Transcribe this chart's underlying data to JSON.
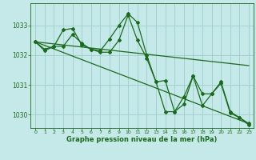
{
  "background_color": "#c5e8e8",
  "grid_color": "#9ecece",
  "line_color": "#1a6b1a",
  "xlabel": "Graphe pression niveau de la mer (hPa)",
  "xlim": [
    -0.5,
    23.5
  ],
  "ylim": [
    1029.55,
    1033.75
  ],
  "yticks": [
    1030,
    1031,
    1032,
    1033
  ],
  "xticks": [
    0,
    1,
    2,
    3,
    4,
    5,
    6,
    7,
    8,
    9,
    10,
    11,
    12,
    13,
    14,
    15,
    16,
    17,
    18,
    19,
    20,
    21,
    22,
    23
  ],
  "series": [
    {
      "x": [
        0,
        1,
        2,
        3,
        4,
        5,
        6,
        7,
        8,
        9,
        10,
        11,
        12,
        13,
        14,
        15,
        16,
        17,
        18,
        19,
        20,
        21,
        22,
        23
      ],
      "y": [
        1032.45,
        1032.15,
        1032.3,
        1032.85,
        1032.9,
        1032.35,
        1032.2,
        1032.15,
        1032.55,
        1033.0,
        1033.4,
        1033.1,
        1032.0,
        1031.1,
        1031.15,
        1030.1,
        1030.35,
        1031.3,
        1030.7,
        1030.7,
        1031.1,
        1030.1,
        1029.9,
        1029.7
      ]
    },
    {
      "x": [
        0,
        1,
        2,
        3,
        4,
        5,
        6,
        7,
        8,
        9,
        10,
        11,
        12,
        13,
        14,
        15,
        16,
        17,
        18,
        19,
        20,
        21,
        22,
        23
      ],
      "y": [
        1032.45,
        1032.2,
        1032.3,
        1032.3,
        1032.7,
        1032.4,
        1032.2,
        1032.1,
        1032.1,
        1032.5,
        1033.35,
        1032.5,
        1031.9,
        1031.1,
        1030.1,
        1030.1,
        1030.6,
        1031.3,
        1030.3,
        1030.7,
        1031.05,
        1030.05,
        1029.9,
        1029.65
      ]
    },
    {
      "x": [
        0,
        23
      ],
      "y": [
        1032.45,
        1031.65
      ]
    },
    {
      "x": [
        0,
        23
      ],
      "y": [
        1032.45,
        1029.7
      ]
    }
  ]
}
